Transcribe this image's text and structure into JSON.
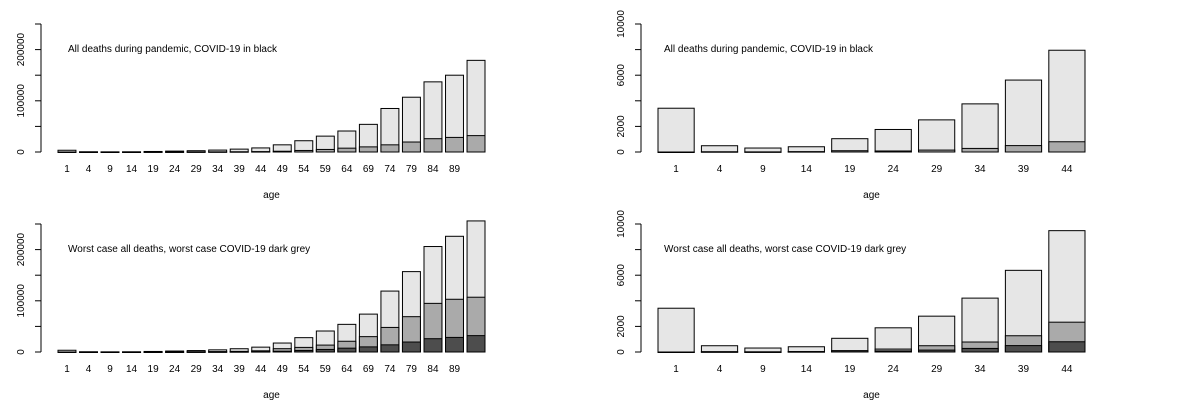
{
  "colors": {
    "all": "#e6e6e6",
    "worst_covid": "#aaaaaa",
    "covid": "#4d4d4d"
  },
  "chart_data": [
    {
      "type": "bar",
      "annotation": "All deaths during pandemic, COVID-19 in black",
      "xlabel": "age",
      "ylabel": "",
      "ylim": [
        0,
        250000
      ],
      "yticks": [
        0,
        50000,
        100000,
        150000,
        200000,
        250000
      ],
      "ytick_labels": [
        "0",
        "",
        "100000",
        "",
        "200000",
        ""
      ],
      "categories": [
        "1",
        "4",
        "9",
        "14",
        "19",
        "24",
        "29",
        "34",
        "39",
        "44",
        "49",
        "54",
        "59",
        "64",
        "69",
        "74",
        "79",
        "84",
        "89",
        ""
      ],
      "series": [
        {
          "values": [
            3420,
            490,
            310,
            410,
            1040,
            1760,
            2510,
            3760,
            5620,
            7950,
            14000,
            22000,
            31000,
            41000,
            54000,
            85000,
            107000,
            137000,
            150000,
            179000
          ]
        },
        {
          "values": [
            0,
            20,
            10,
            30,
            100,
            80,
            150,
            280,
            500,
            800,
            1500,
            3000,
            5000,
            7500,
            10000,
            14000,
            19500,
            26000,
            28500,
            32000
          ]
        }
      ]
    },
    {
      "type": "bar",
      "annotation": "All deaths during pandemic, COVID-19 in black",
      "xlabel": "age",
      "ylabel": "",
      "ylim": [
        0,
        10000
      ],
      "yticks": [
        0,
        2000,
        4000,
        6000,
        8000,
        10000
      ],
      "ytick_labels": [
        "0",
        "2000",
        "",
        "6000",
        "",
        "10000"
      ],
      "categories": [
        "1",
        "4",
        "9",
        "14",
        "19",
        "24",
        "29",
        "34",
        "39",
        "44"
      ],
      "series": [
        {
          "values": [
            3420,
            490,
            310,
            410,
            1040,
            1760,
            2510,
            3760,
            5620,
            7950
          ]
        },
        {
          "values": [
            0,
            20,
            10,
            30,
            100,
            80,
            150,
            280,
            500,
            800
          ]
        }
      ]
    },
    {
      "type": "bar",
      "annotation": "Worst case all deaths, worst case COVID-19 dark grey",
      "xlabel": "age",
      "ylabel": "",
      "ylim": [
        0,
        250000
      ],
      "yticks": [
        0,
        50000,
        100000,
        150000,
        200000,
        250000
      ],
      "ytick_labels": [
        "0",
        "",
        "100000",
        "",
        "200000",
        ""
      ],
      "categories": [
        "1",
        "4",
        "9",
        "14",
        "19",
        "24",
        "29",
        "34",
        "39",
        "44",
        "49",
        "54",
        "59",
        "64",
        "69",
        "74",
        "79",
        "84",
        "89",
        ""
      ],
      "series": [
        {
          "values": [
            3420,
            490,
            310,
            410,
            1070,
            1890,
            2800,
            4210,
            6380,
            9480,
            17500,
            28000,
            41000,
            54000,
            74000,
            119000,
            157000,
            206000,
            226000,
            256000
          ]
        },
        {
          "values": [
            0,
            20,
            10,
            30,
            100,
            230,
            490,
            780,
            1270,
            2330,
            6500,
            9000,
            13500,
            21000,
            30000,
            48000,
            69000,
            95000,
            103000,
            107000
          ]
        },
        {
          "values": [
            0,
            20,
            10,
            30,
            100,
            80,
            150,
            280,
            500,
            800,
            1500,
            3000,
            5000,
            7500,
            10000,
            14000,
            19500,
            26000,
            28500,
            32000
          ]
        }
      ]
    },
    {
      "type": "bar",
      "annotation": "Worst case all deaths, worst case COVID-19 dark grey",
      "xlabel": "age",
      "ylabel": "",
      "ylim": [
        0,
        10000
      ],
      "yticks": [
        0,
        2000,
        4000,
        6000,
        8000,
        10000
      ],
      "ytick_labels": [
        "0",
        "2000",
        "",
        "6000",
        "",
        "10000"
      ],
      "categories": [
        "1",
        "4",
        "9",
        "14",
        "19",
        "24",
        "29",
        "34",
        "39",
        "44"
      ],
      "series": [
        {
          "values": [
            3420,
            490,
            310,
            410,
            1070,
            1890,
            2800,
            4210,
            6380,
            9480
          ]
        },
        {
          "values": [
            0,
            20,
            10,
            30,
            100,
            230,
            490,
            780,
            1270,
            2330
          ]
        },
        {
          "values": [
            0,
            20,
            10,
            30,
            100,
            80,
            150,
            280,
            500,
            800
          ]
        }
      ]
    }
  ]
}
